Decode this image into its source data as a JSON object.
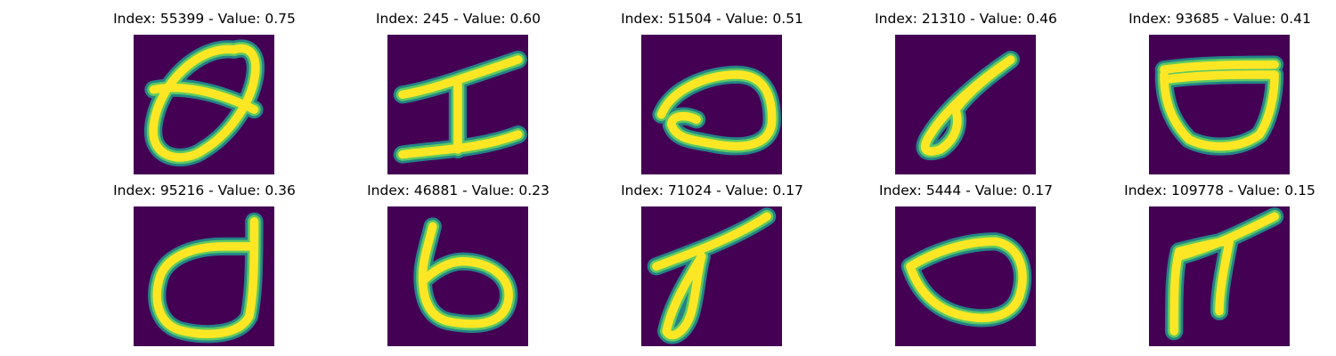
{
  "colors": {
    "background": "#440154",
    "stroke_outer": "#21918c",
    "stroke_mid": "#5ec962",
    "stroke_core": "#fde725"
  },
  "items": [
    {
      "title": "Index: 55399 - Value: 0.75",
      "index": 55399,
      "value": 0.75,
      "glyph": "loop-eight"
    },
    {
      "title": "Index: 245 - Value: 0.60",
      "index": 245,
      "value": 0.6,
      "glyph": "capital-i"
    },
    {
      "title": "Index: 51504 - Value: 0.51",
      "index": 51504,
      "value": 0.51,
      "glyph": "oval-o"
    },
    {
      "title": "Index: 21310 - Value: 0.46",
      "index": 21310,
      "value": 0.46,
      "glyph": "slanted-loop"
    },
    {
      "title": "Index: 93685 - Value: 0.41",
      "index": 93685,
      "value": 0.41,
      "glyph": "bowl"
    },
    {
      "title": "Index: 95216 - Value: 0.36",
      "index": 95216,
      "value": 0.36,
      "glyph": "letter-d"
    },
    {
      "title": "Index: 46881 - Value: 0.23",
      "index": 46881,
      "value": 0.23,
      "glyph": "letter-b"
    },
    {
      "title": "Index: 71024 - Value: 0.17",
      "index": 71024,
      "value": 0.17,
      "glyph": "slanted-stroke-loop"
    },
    {
      "title": "Index: 5444 - Value: 0.17",
      "index": 5444,
      "value": 0.17,
      "glyph": "oval-o-small"
    },
    {
      "title": "Index: 109778 - Value: 0.15",
      "index": 109778,
      "value": 0.15,
      "glyph": "letter-n"
    }
  ]
}
